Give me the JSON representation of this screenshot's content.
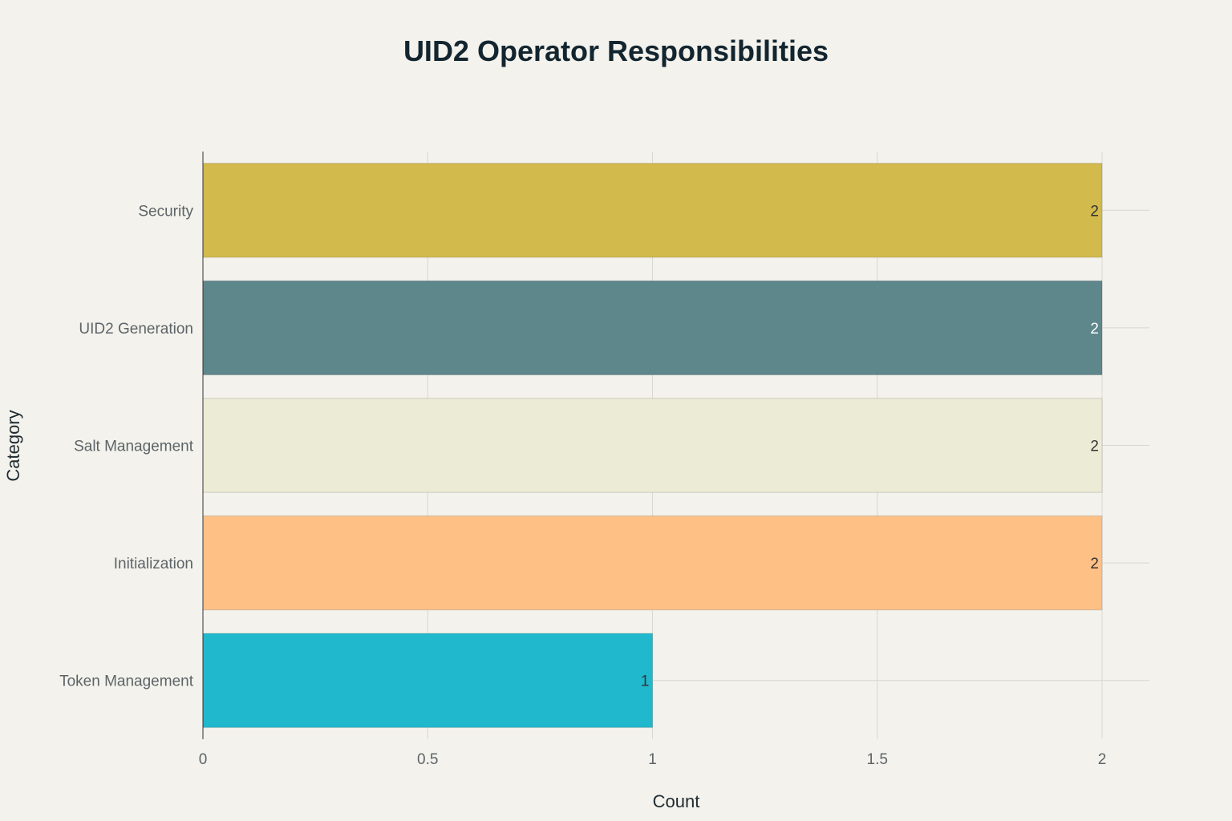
{
  "chart_data": {
    "type": "bar",
    "orientation": "horizontal",
    "title": "UID2 Operator Responsibilities",
    "xlabel": "Count",
    "ylabel": "Category",
    "xlim": [
      0,
      2.1
    ],
    "x_ticks": [
      0,
      0.5,
      1,
      1.5,
      2
    ],
    "x_tick_labels": [
      "0",
      "0.5",
      "1",
      "1.5",
      "2"
    ],
    "grid": true,
    "categories": [
      "Security",
      "UID2 Generation",
      "Salt Management",
      "Initialization",
      "Token Management"
    ],
    "values": [
      2,
      2,
      2,
      2,
      1
    ],
    "data_labels": [
      "2",
      "2",
      "2",
      "2",
      "1"
    ],
    "bar_colors": [
      "#d2ba4c",
      "#5e878c",
      "#ecebd5",
      "#ffc086",
      "#1fb8cd"
    ],
    "label_colors": [
      "#333333",
      "#ffffff",
      "#333333",
      "#333333",
      "#333333"
    ]
  }
}
